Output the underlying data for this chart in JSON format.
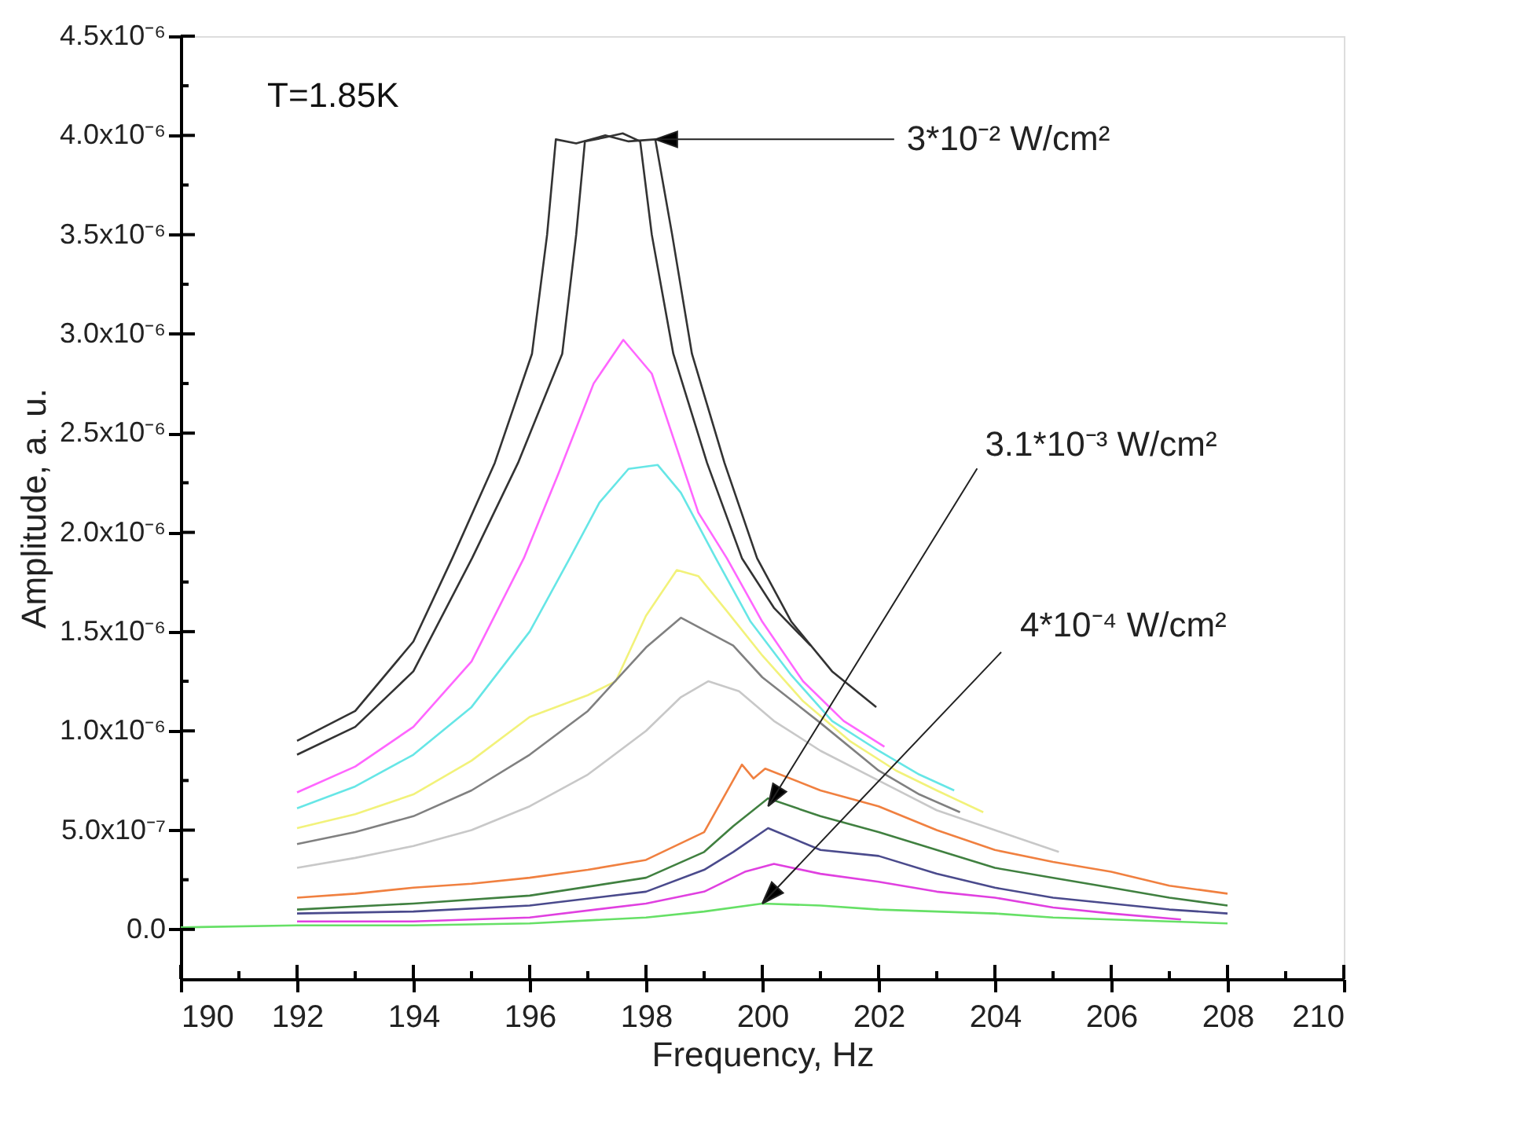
{
  "chart_data": {
    "type": "line",
    "xlabel": "Frequency, Hz",
    "ylabel": "Amplitude, a. u.",
    "xlim": [
      190,
      210
    ],
    "ylim": [
      -2.5e-07,
      4.5e-06
    ],
    "xticks": [
      190,
      {
        "value": 191,
        "label": null
      },
      192,
      {
        "value": 193,
        "label": null
      },
      194,
      {
        "value": 195,
        "label": null
      },
      196,
      {
        "value": 197,
        "label": null
      },
      198,
      {
        "value": 199,
        "label": null
      },
      200,
      {
        "value": 201,
        "label": null
      },
      202,
      {
        "value": 203,
        "label": null
      },
      204,
      {
        "value": 205,
        "label": null
      },
      206,
      {
        "value": 207,
        "label": null
      },
      208,
      {
        "value": 209,
        "label": null
      },
      210
    ],
    "yticks": [
      {
        "value": 0,
        "label": "0.0"
      },
      {
        "value": 2.5e-07,
        "label": null
      },
      {
        "value": 5e-07,
        "label": "5.0x10⁻⁷"
      },
      {
        "value": 7.5e-07,
        "label": null
      },
      {
        "value": 1e-06,
        "label": "1.0x10⁻⁶"
      },
      {
        "value": 1.25e-06,
        "label": null
      },
      {
        "value": 1.5e-06,
        "label": "1.5x10⁻⁶"
      },
      {
        "value": 1.75e-06,
        "label": null
      },
      {
        "value": 2e-06,
        "label": "2.0x10⁻⁶"
      },
      {
        "value": 2.25e-06,
        "label": null
      },
      {
        "value": 2.5e-06,
        "label": "2.5x10⁻⁶"
      },
      {
        "value": 2.75e-06,
        "label": null
      },
      {
        "value": 3e-06,
        "label": "3.0x10⁻⁶"
      },
      {
        "value": 3.25e-06,
        "label": null
      },
      {
        "value": 3.5e-06,
        "label": "3.5x10⁻⁶"
      },
      {
        "value": 3.75e-06,
        "label": null
      },
      {
        "value": 4e-06,
        "label": "4.0x10⁻⁶"
      },
      {
        "value": 4.25e-06,
        "label": null
      },
      {
        "value": 4.5e-06,
        "label": "4.5x10⁻⁶"
      }
    ],
    "grid": false,
    "annotations": [
      "T=1.85K",
      {
        "text": "3*10⁻² W/cm²",
        "x": 198.16,
        "y": 3.98e-06
      },
      {
        "text": "3.1*10⁻³ W/cm²",
        "x": 200.1,
        "y": 6.2e-07
      },
      {
        "text": "4*10⁻⁴ W/cm²",
        "x": 200,
        "y": 1.3e-07
      }
    ],
    "series": [
      {
        "color": "#333333",
        "x": [
          192,
          193,
          194,
          194.67,
          195.4,
          196.04,
          196.3,
          196.45,
          196.8,
          197.3,
          197.7,
          198.16,
          198.45,
          198.79,
          199.35,
          199.91,
          200.5,
          201.2,
          201.96
        ],
        "values": [
          9.5e-07,
          1.1e-06,
          1.45e-06,
          1.87e-06,
          2.35e-06,
          2.9e-06,
          3.5e-06,
          3.98e-06,
          3.96e-06,
          4e-06,
          3.97e-06,
          3.98e-06,
          3.5e-06,
          2.9e-06,
          2.35e-06,
          1.87e-06,
          1.55e-06,
          1.3e-06,
          1.12e-06
        ]
      },
      {
        "color": "#333333",
        "x": [
          192,
          193,
          194,
          195.01,
          195.8,
          196.56,
          196.8,
          196.95,
          197.3,
          197.6,
          197.9,
          198.1,
          198.47,
          199.05,
          199.65,
          200.2,
          200.83
        ],
        "values": [
          8.8e-07,
          1.02e-06,
          1.3e-06,
          1.87e-06,
          2.35e-06,
          2.9e-06,
          3.5e-06,
          3.97e-06,
          3.99e-06,
          4.01e-06,
          3.97e-06,
          3.5e-06,
          2.9e-06,
          2.35e-06,
          1.87e-06,
          1.62e-06,
          1.43e-06
        ]
      },
      {
        "color": "#ff66ff",
        "x": [
          192,
          193,
          194,
          195,
          195.9,
          196.5,
          197.1,
          197.61,
          198.1,
          198.5,
          198.9,
          199.39,
          200,
          200.7,
          201.4,
          202.1
        ],
        "values": [
          6.9e-07,
          8.2e-07,
          1.02e-06,
          1.35e-06,
          1.87e-06,
          2.3e-06,
          2.75e-06,
          2.97e-06,
          2.8e-06,
          2.45e-06,
          2.1e-06,
          1.87e-06,
          1.55e-06,
          1.25e-06,
          1.05e-06,
          9.2e-07
        ]
      },
      {
        "color": "#66e6e6",
        "x": [
          192,
          193,
          194,
          195,
          196,
          196.69,
          197.2,
          197.7,
          198.2,
          198.6,
          199.2,
          199.8,
          200.5,
          201.2,
          202,
          202.7,
          203.3
        ],
        "values": [
          6.1e-07,
          7.2e-07,
          8.8e-07,
          1.12e-06,
          1.5e-06,
          1.87e-06,
          2.15e-06,
          2.32e-06,
          2.34e-06,
          2.2e-06,
          1.87e-06,
          1.55e-06,
          1.28e-06,
          1.05e-06,
          9e-07,
          7.8e-07,
          7e-07
        ]
      },
      {
        "color": "#f2f27a",
        "x": [
          192,
          193,
          194,
          195,
          196,
          197,
          197.48,
          198,
          198.53,
          198.9,
          199.4,
          200,
          200.7,
          201.5,
          202.3,
          203,
          203.8
        ],
        "values": [
          5.1e-07,
          5.8e-07,
          6.8e-07,
          8.5e-07,
          1.07e-06,
          1.18e-06,
          1.25e-06,
          1.58e-06,
          1.81e-06,
          1.78e-06,
          1.6e-06,
          1.38e-06,
          1.15e-06,
          9.5e-07,
          8e-07,
          7e-07,
          5.9e-07
        ]
      },
      {
        "color": "#808080",
        "x": [
          192,
          193,
          194,
          195,
          196,
          197,
          198,
          198.6,
          199.5,
          200,
          201,
          202,
          202.7,
          203.4
        ],
        "values": [
          4.3e-07,
          4.9e-07,
          5.7e-07,
          7e-07,
          8.8e-07,
          1.1e-06,
          1.42e-06,
          1.57e-06,
          1.43e-06,
          1.27e-06,
          1.04e-06,
          8e-07,
          6.8e-07,
          5.9e-07
        ]
      },
      {
        "color": "#c8c8c8",
        "x": [
          192,
          193,
          194,
          195,
          196,
          197,
          198,
          198.6,
          199.07,
          199.6,
          200.2,
          201,
          202,
          203,
          204,
          205.1
        ],
        "values": [
          3.1e-07,
          3.6e-07,
          4.2e-07,
          5e-07,
          6.2e-07,
          7.8e-07,
          1e-06,
          1.17e-06,
          1.25e-06,
          1.2e-06,
          1.05e-06,
          9e-07,
          7.5e-07,
          6e-07,
          5e-07,
          3.9e-07
        ]
      },
      {
        "color": "#f08040",
        "x": [
          192,
          193,
          194,
          195,
          196,
          197,
          198,
          199,
          199.65,
          199.85,
          200.05,
          201,
          202,
          203,
          204,
          205,
          206,
          207,
          208
        ],
        "values": [
          1.6e-07,
          1.8e-07,
          2.1e-07,
          2.3e-07,
          2.6e-07,
          3e-07,
          3.5e-07,
          4.9e-07,
          8.3e-07,
          7.6e-07,
          8.1e-07,
          7e-07,
          6.2e-07,
          5e-07,
          4e-07,
          3.4e-07,
          2.9e-07,
          2.2e-07,
          1.8e-07
        ]
      },
      {
        "color": "#408040",
        "x": [
          192,
          194,
          196,
          198,
          199,
          199.5,
          200.1,
          201,
          202,
          203,
          204,
          205,
          206,
          207,
          208
        ],
        "values": [
          1e-07,
          1.3e-07,
          1.7e-07,
          2.6e-07,
          3.9e-07,
          5.2e-07,
          6.6e-07,
          5.7e-07,
          4.9e-07,
          4e-07,
          3.1e-07,
          2.6e-07,
          2.1e-07,
          1.6e-07,
          1.2e-07
        ]
      },
      {
        "color": "#4a4a8c",
        "x": [
          192,
          194,
          196,
          198,
          199,
          199.5,
          200.1,
          201,
          202,
          203,
          204,
          205,
          206,
          207,
          208
        ],
        "values": [
          8e-08,
          9e-08,
          1.2e-07,
          1.9e-07,
          3e-07,
          3.9e-07,
          5.1e-07,
          4e-07,
          3.7e-07,
          2.8e-07,
          2.1e-07,
          1.6e-07,
          1.3e-07,
          1e-07,
          8e-08
        ]
      },
      {
        "color": "#e040e0",
        "x": [
          192,
          194,
          196,
          198,
          199,
          199.7,
          200.2,
          201,
          202,
          203,
          204,
          205,
          206,
          207.2
        ],
        "values": [
          4e-08,
          4e-08,
          6e-08,
          1.3e-07,
          1.9e-07,
          2.9e-07,
          3.3e-07,
          2.8e-07,
          2.4e-07,
          1.9e-07,
          1.6e-07,
          1.1e-07,
          8e-08,
          5e-08
        ]
      },
      {
        "color": "#66e066",
        "x": [
          190,
          192,
          194,
          196,
          198,
          199,
          200,
          201,
          202,
          203,
          204,
          205,
          206,
          207,
          208
        ],
        "values": [
          1e-08,
          2e-08,
          2e-08,
          3e-08,
          6e-08,
          9e-08,
          1.3e-07,
          1.2e-07,
          1e-07,
          9e-08,
          8e-08,
          6e-08,
          5e-08,
          4e-08,
          3e-08
        ]
      }
    ]
  }
}
